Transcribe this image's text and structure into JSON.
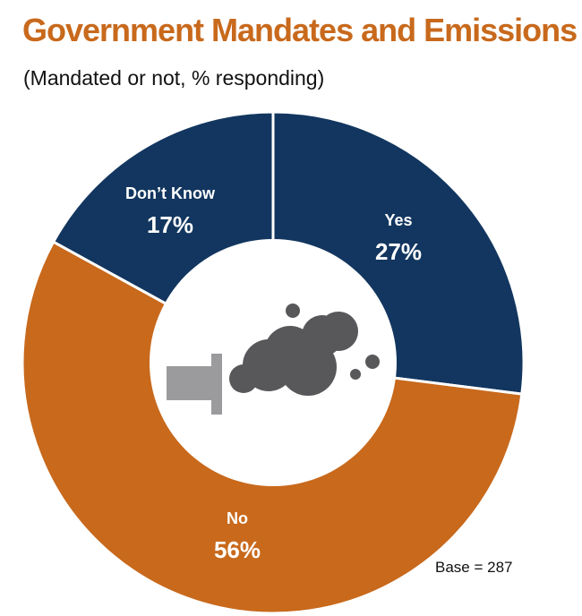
{
  "chart_data": {
    "type": "pie",
    "style": "donut",
    "title": "Government Mandates and Emissions",
    "subtitle": "(Mandated or not, % responding)",
    "slices": [
      {
        "label": "Yes",
        "value": 27,
        "value_label": "27%",
        "color": "#12365F"
      },
      {
        "label": "No",
        "value": 56,
        "value_label": "56%",
        "color": "#C8691C"
      },
      {
        "label": "Don’t Know",
        "value": 17,
        "value_label": "17%",
        "color": "#12365F"
      }
    ],
    "start_angle": "12 o'clock, clockwise",
    "center_icon": "exhaust-pipe-smoke-icon",
    "note": "Base = 287"
  }
}
